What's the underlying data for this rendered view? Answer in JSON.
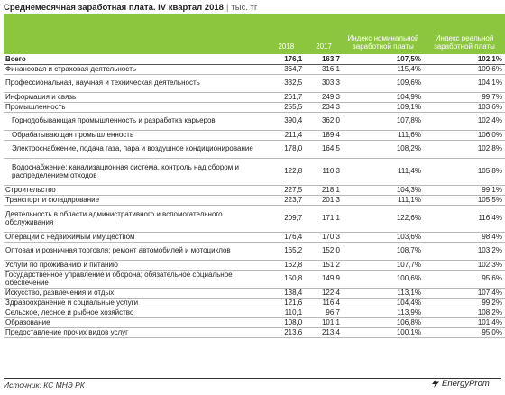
{
  "header": {
    "title": "Среднемесячная заработная плата. IV квартал 2018",
    "separator": "|",
    "unit": "тыс. тг"
  },
  "columns": {
    "name": "",
    "y2018": "2018",
    "y2017": "2017",
    "nominal": "Индекс номинальной заработной платы",
    "real": "Индекс реальной заработной платы"
  },
  "rows": [
    {
      "name": "Всего",
      "v2018": "176,1",
      "v2017": "163,7",
      "nominal": "107,5%",
      "real": "102,1%",
      "kind": "total"
    },
    {
      "name": "Финансовая и страховая деятельность",
      "v2018": "364,7",
      "v2017": "316,1",
      "nominal": "115,4%",
      "real": "109,6%",
      "kind": "row"
    },
    {
      "name": "Профессиональная, научная и техническая деятельность",
      "v2018": "332,5",
      "v2017": "303,3",
      "nominal": "109,6%",
      "real": "104,1%",
      "kind": "row"
    },
    {
      "name": "Информация и связь",
      "v2018": "261,7",
      "v2017": "249,3",
      "nominal": "104,9%",
      "real": "99,7%",
      "kind": "row"
    },
    {
      "name": "Промышленность",
      "v2018": "255,5",
      "v2017": "234,3",
      "nominal": "109,1%",
      "real": "103,6%",
      "kind": "row"
    },
    {
      "name": "Горнодобывающая промышленность и разработка карьеров",
      "v2018": "390,4",
      "v2017": "362,0",
      "nominal": "107,8%",
      "real": "102,4%",
      "kind": "sub"
    },
    {
      "name": "Обрабатывающая промышленность",
      "v2018": "211,4",
      "v2017": "189,4",
      "nominal": "111,6%",
      "real": "106,0%",
      "kind": "sub"
    },
    {
      "name": "Электроснабжение, подача газа, пара и воздушное кондиционирование",
      "v2018": "178,0",
      "v2017": "164,5",
      "nominal": "108,2%",
      "real": "102,8%",
      "kind": "sub"
    },
    {
      "name": "Водоснабжение; канализационная система, контроль над сбором и распределением отходов",
      "v2018": "122,8",
      "v2017": "110,3",
      "nominal": "111,4%",
      "real": "105,8%",
      "kind": "sub"
    },
    {
      "name": "Строительство",
      "v2018": "227,5",
      "v2017": "218,1",
      "nominal": "104,3%",
      "real": "99,1%",
      "kind": "row"
    },
    {
      "name": "Транспорт и складирование",
      "v2018": "223,7",
      "v2017": "201,3",
      "nominal": "111,1%",
      "real": "105,5%",
      "kind": "row"
    },
    {
      "name": "Деятельность в области административного и вспомогательного обслуживания",
      "v2018": "209,7",
      "v2017": "171,1",
      "nominal": "122,6%",
      "real": "116,4%",
      "kind": "row"
    },
    {
      "name": "Операции с недвижимым имуществом",
      "v2018": "176,4",
      "v2017": "170,3",
      "nominal": "103,6%",
      "real": "98,4%",
      "kind": "row"
    },
    {
      "name": "Оптовая и розничная торговля; ремонт автомобилей и мотоциклов",
      "v2018": "165,2",
      "v2017": "152,0",
      "nominal": "108,7%",
      "real": "103,2%",
      "kind": "row"
    },
    {
      "name": "Услуги по проживанию и питанию",
      "v2018": "162,8",
      "v2017": "151,2",
      "nominal": "107,7%",
      "real": "102,3%",
      "kind": "row"
    },
    {
      "name": "Государственное управление и оборона; обязательное социальное обеспечение",
      "v2018": "150,8",
      "v2017": "149,9",
      "nominal": "100,6%",
      "real": "95,6%",
      "kind": "row"
    },
    {
      "name": "Искусство, развлечения и отдых",
      "v2018": "138,4",
      "v2017": "122,4",
      "nominal": "113,1%",
      "real": "107,4%",
      "kind": "row"
    },
    {
      "name": "Здравоохранение и социальные услуги",
      "v2018": "121,6",
      "v2017": "116,4",
      "nominal": "104,4%",
      "real": "99,2%",
      "kind": "row"
    },
    {
      "name": "Сельское, лесное и рыбное хозяйство",
      "v2018": "110,1",
      "v2017": "96,7",
      "nominal": "113,9%",
      "real": "108,2%",
      "kind": "row"
    },
    {
      "name": "Образование",
      "v2018": "108,0",
      "v2017": "101,1",
      "nominal": "106,8%",
      "real": "101,4%",
      "kind": "row"
    },
    {
      "name": "Предоставление прочих видов услуг",
      "v2018": "213,6",
      "v2017": "213,4",
      "nominal": "100,1%",
      "real": "95,0%",
      "kind": "row"
    }
  ],
  "footer": {
    "source": "Источник: КС МНЭ РК",
    "logo": "EnergyProm",
    "logo_icon": "lightning-icon"
  },
  "colors": {
    "header_bg": "#8cc63f",
    "header_text": "#ffffff",
    "row_border": "#b9b9b9"
  }
}
